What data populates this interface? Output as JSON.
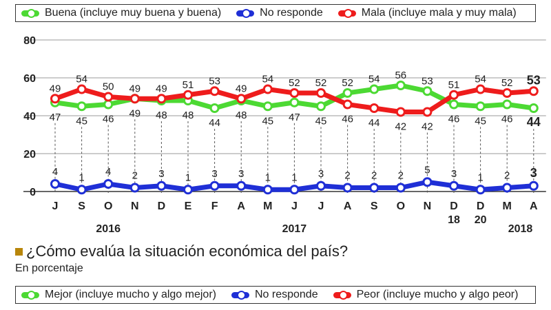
{
  "chart_data": {
    "type": "line",
    "title": "¿Cómo evalúa la situación económica del país?",
    "subtitle": "En porcentaje",
    "ylim": [
      0,
      80
    ],
    "yticks": [
      0,
      20,
      40,
      60,
      80
    ],
    "grid": true,
    "categories": [
      {
        "month": "J",
        "day": ""
      },
      {
        "month": "S",
        "day": ""
      },
      {
        "month": "O",
        "day": ""
      },
      {
        "month": "N",
        "day": ""
      },
      {
        "month": "D",
        "day": ""
      },
      {
        "month": "E",
        "day": ""
      },
      {
        "month": "F",
        "day": ""
      },
      {
        "month": "A",
        "day": ""
      },
      {
        "month": "M",
        "day": ""
      },
      {
        "month": "J",
        "day": ""
      },
      {
        "month": "J",
        "day": ""
      },
      {
        "month": "A",
        "day": ""
      },
      {
        "month": "S",
        "day": ""
      },
      {
        "month": "O",
        "day": ""
      },
      {
        "month": "N",
        "day": ""
      },
      {
        "month": "D",
        "day": "18"
      },
      {
        "month": "D",
        "day": "20"
      },
      {
        "month": "M",
        "day": ""
      },
      {
        "month": "A",
        "day": ""
      }
    ],
    "years": [
      {
        "label": "2016",
        "at_index": 2
      },
      {
        "label": "2017",
        "at_index": 9
      },
      {
        "label": "2018",
        "at_index": 17.5
      }
    ],
    "series": [
      {
        "name": "Buena (incluye muy buena y buena)",
        "color": "#4cd933",
        "label_pos": "below",
        "values": [
          47,
          45,
          46,
          49,
          48,
          48,
          44,
          48,
          45,
          47,
          45,
          52,
          54,
          56,
          53,
          46,
          45,
          46,
          44
        ]
      },
      {
        "name": "No responde",
        "color": "#1f2fd6",
        "label_pos": "above",
        "values": [
          4,
          1,
          4,
          2,
          3,
          1,
          3,
          3,
          1,
          1,
          3,
          2,
          2,
          2,
          5,
          3,
          1,
          2,
          3
        ]
      },
      {
        "name": "Mala (incluye mala y muy mala)",
        "color": "#ee1c1c",
        "label_pos": "above",
        "values": [
          49,
          54,
          50,
          49,
          49,
          51,
          53,
          49,
          54,
          52,
          52,
          46,
          44,
          42,
          42,
          51,
          54,
          52,
          53
        ]
      }
    ],
    "label_rows": {
      "top": [
        49,
        54,
        50,
        49,
        49,
        51,
        53,
        49,
        54,
        52,
        52,
        52,
        54,
        56,
        53,
        51,
        54,
        52,
        53
      ],
      "bottom": [
        47,
        45,
        46,
        49,
        48,
        48,
        44,
        48,
        45,
        47,
        45,
        46,
        44,
        42,
        42,
        46,
        45,
        46,
        44
      ]
    }
  },
  "legend_top": {
    "items": [
      {
        "label": "Buena (incluye muy buena y buena)",
        "color": "#4cd933"
      },
      {
        "label": "No responde",
        "color": "#1f2fd6"
      },
      {
        "label": "Mala (incluye mala y muy mala)",
        "color": "#ee1c1c"
      }
    ]
  },
  "legend_bottom": {
    "items": [
      {
        "label": "Mejor (incluye mucho y algo mejor)",
        "color": "#4cd933"
      },
      {
        "label": "No responde",
        "color": "#1f2fd6"
      },
      {
        "label": "Peor (incluye mucho y algo peor)",
        "color": "#ee1c1c"
      }
    ]
  },
  "question": "¿Cómo evalúa la situación económica del país?",
  "subtitle": "En porcentaje"
}
